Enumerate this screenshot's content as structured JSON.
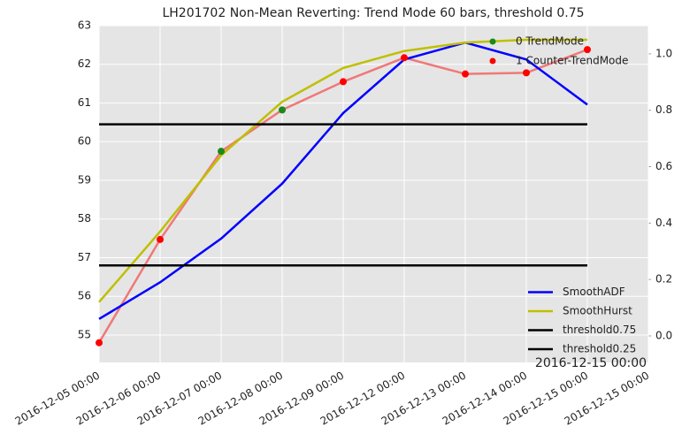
{
  "chart_data": {
    "type": "line",
    "title": "LH201702 Non-Mean Reverting: Trend Mode 60 bars, threshold 0.75",
    "annotation": "2016-12-15 00:00",
    "categories": [
      "2016-12-05 00:00",
      "2016-12-06 00:00",
      "2016-12-07 00:00",
      "2016-12-08 00:00",
      "2016-12-09 00:00",
      "2016-12-12 00:00",
      "2016-12-13 00:00",
      "2016-12-14 00:00",
      "2016-12-15 00:00",
      "2016-12-15 00:00"
    ],
    "ylim": [
      54.29,
      63
    ],
    "yticks": [
      55,
      56,
      57,
      58,
      59,
      60,
      61,
      62,
      63
    ],
    "y2lim": [
      -0.094,
      1.1
    ],
    "y2ticks": [
      {
        "value": 0,
        "label": "0.0"
      },
      {
        "value": 0.2,
        "label": "0.2"
      },
      {
        "value": 0.4,
        "label": "0.4"
      },
      {
        "value": 0.6,
        "label": "0.6"
      },
      {
        "value": 0.8,
        "label": "0.8"
      },
      {
        "value": 1,
        "label": "1.0"
      }
    ],
    "grid": true,
    "price_color": "#f07878",
    "price": [
      54.8,
      57.47,
      59.75,
      60.82,
      61.55,
      62.17,
      61.75,
      61.78,
      62.38,
      null
    ],
    "scatter_legend": "upper right",
    "line_legend": "lower right",
    "scatter_series": [
      {
        "name": "0 TrendMode",
        "color": "#1a8a1a",
        "values": [
          null,
          null,
          59.75,
          60.82,
          null,
          null,
          null,
          null,
          null,
          null
        ]
      },
      {
        "name": "1 Counter-TrendMode",
        "color": "#ff0000",
        "values": [
          54.8,
          57.47,
          null,
          null,
          61.55,
          62.17,
          61.75,
          61.78,
          62.38,
          null
        ]
      }
    ],
    "series": [
      {
        "name": "SmoothADF",
        "color": "#0000ff",
        "axis": "y2",
        "values": [
          0.06,
          0.19,
          0.345,
          0.54,
          0.79,
          0.98,
          1.04,
          0.98,
          0.82,
          null
        ]
      },
      {
        "name": "SmoothHurst",
        "color": "#bfbf00",
        "axis": "y2",
        "values": [
          0.12,
          0.37,
          0.64,
          0.83,
          0.95,
          1.01,
          1.04,
          1.05,
          1.05,
          null
        ]
      },
      {
        "name": "threshold0.75",
        "color": "#000000",
        "axis": "y2",
        "values": [
          0.75,
          0.75,
          0.75,
          0.75,
          0.75,
          0.75,
          0.75,
          0.75,
          0.75,
          null
        ]
      },
      {
        "name": "threshold0.25",
        "color": "#000000",
        "axis": "y2",
        "values": [
          0.25,
          0.25,
          0.25,
          0.25,
          0.25,
          0.25,
          0.25,
          0.25,
          0.25,
          null
        ]
      }
    ]
  }
}
